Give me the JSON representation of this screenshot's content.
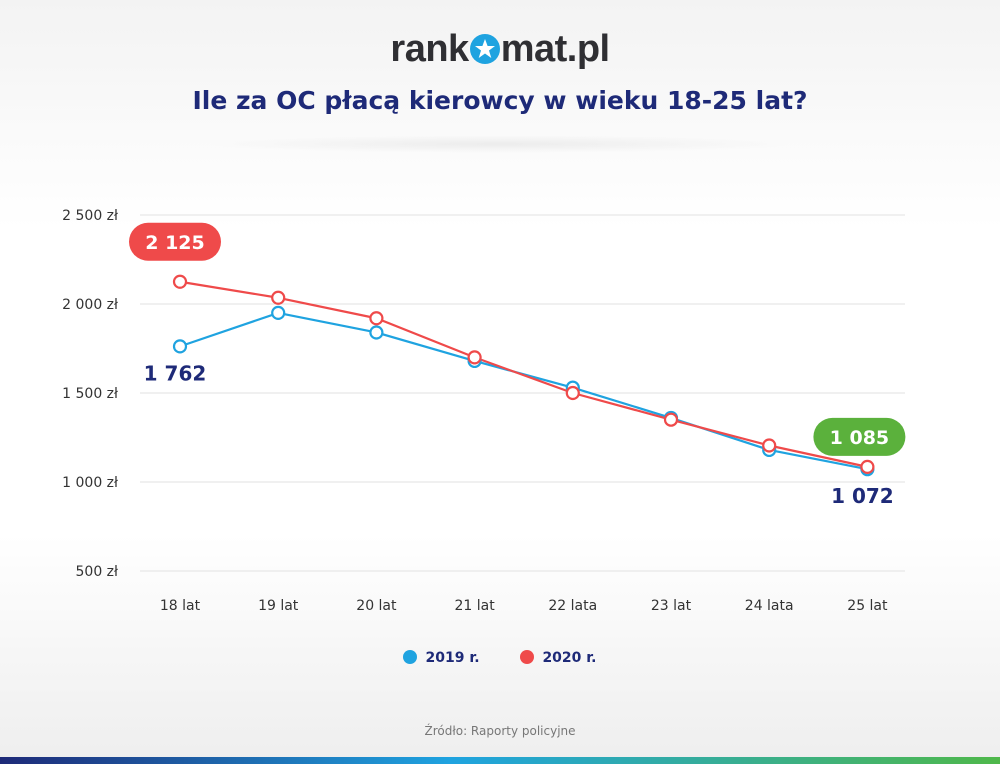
{
  "brand": {
    "text_before": "rank",
    "text_after": "mat.pl"
  },
  "title": "Ile za OC płacą kierowcy w wieku 18-25 lat?",
  "source": "Źródło: Raporty policyjne",
  "colors": {
    "series_2019": "#1fa3e0",
    "series_2020": "#ef4a4a",
    "callout_max": "#ef4a4a",
    "callout_min": "#5bb13c",
    "text_dark": "#1e2a78",
    "axis_text": "#333333",
    "grid": "#e2e2e2"
  },
  "chart_data": {
    "type": "line",
    "categories": [
      "18 lat",
      "19 lat",
      "20 lat",
      "21 lat",
      "22 lata",
      "23 lat",
      "24 lata",
      "25 lat"
    ],
    "series": [
      {
        "name": "2019 r.",
        "color": "#1fa3e0",
        "values": [
          1762,
          1950,
          1840,
          1680,
          1530,
          1360,
          1180,
          1072
        ]
      },
      {
        "name": "2020 r.",
        "color": "#ef4a4a",
        "values": [
          2125,
          2035,
          1920,
          1700,
          1500,
          1350,
          1205,
          1085
        ]
      }
    ],
    "ylim": [
      500,
      2500
    ],
    "yticks": [
      {
        "value": 2500,
        "label": "2 500 zł"
      },
      {
        "value": 2000,
        "label": "2 000 zł"
      },
      {
        "value": 1500,
        "label": "1 500 zł"
      },
      {
        "value": 1000,
        "label": "1 000 zł"
      },
      {
        "value": 500,
        "label": "500 zł"
      }
    ],
    "grid": true,
    "legend": "bottom",
    "annotations": [
      {
        "text": "2 125",
        "style": "pill-red",
        "series": 1,
        "index": 0
      },
      {
        "text": "1 762",
        "style": "plain",
        "series": 0,
        "index": 0
      },
      {
        "text": "1 085",
        "style": "pill-green",
        "series": 1,
        "index": 7
      },
      {
        "text": "1 072",
        "style": "plain",
        "series": 0,
        "index": 7
      }
    ]
  }
}
